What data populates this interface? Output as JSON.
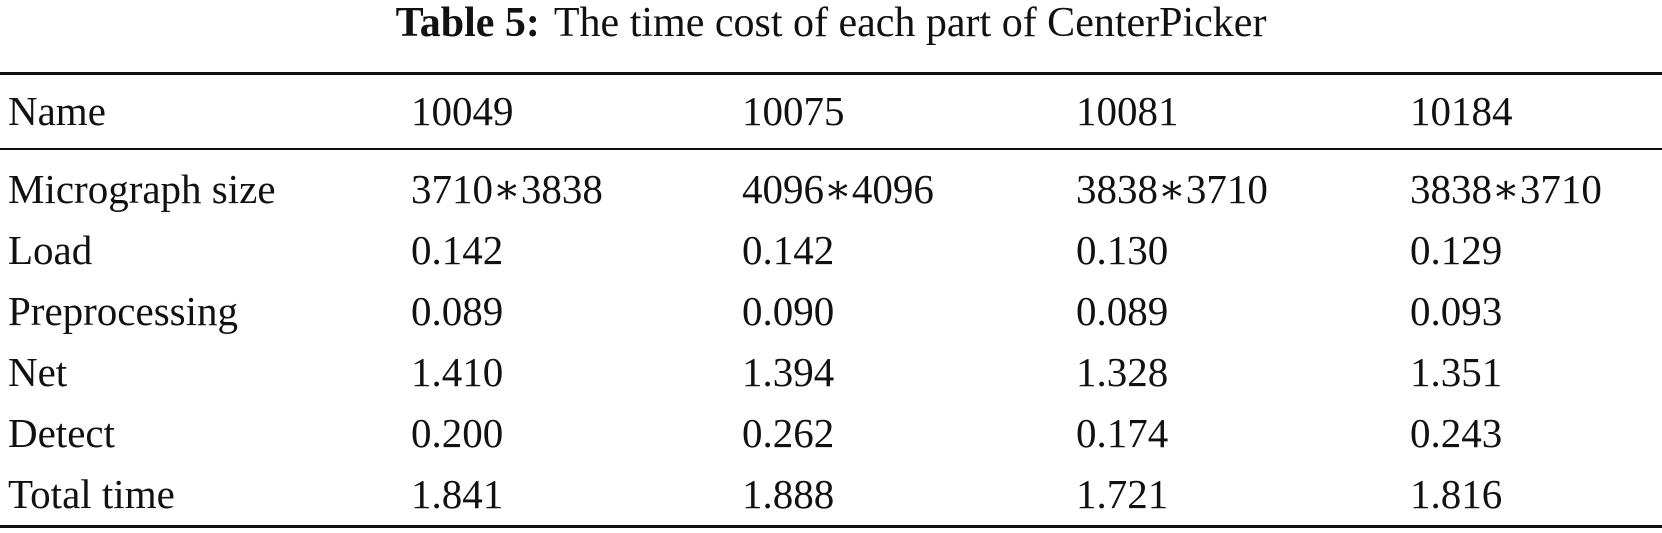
{
  "caption": {
    "label": "Table 5:",
    "text": "The time cost of each part of CenterPicker"
  },
  "table": {
    "header": [
      "Name",
      "10049",
      "10075",
      "10081",
      "10184"
    ],
    "rows": [
      [
        "Micrograph size",
        "3710∗3838",
        "4096∗4096",
        "3838∗3710",
        "3838∗3710"
      ],
      [
        "Load",
        "0.142",
        "0.142",
        "0.130",
        "0.129"
      ],
      [
        "Preprocessing",
        "0.089",
        "0.090",
        "0.089",
        "0.093"
      ],
      [
        "Net",
        "1.410",
        "1.394",
        "1.328",
        "1.351"
      ],
      [
        "Detect",
        "0.200",
        "0.262",
        "0.174",
        "0.243"
      ],
      [
        "Total time",
        "1.841",
        "1.888",
        "1.721",
        "1.816"
      ]
    ]
  }
}
